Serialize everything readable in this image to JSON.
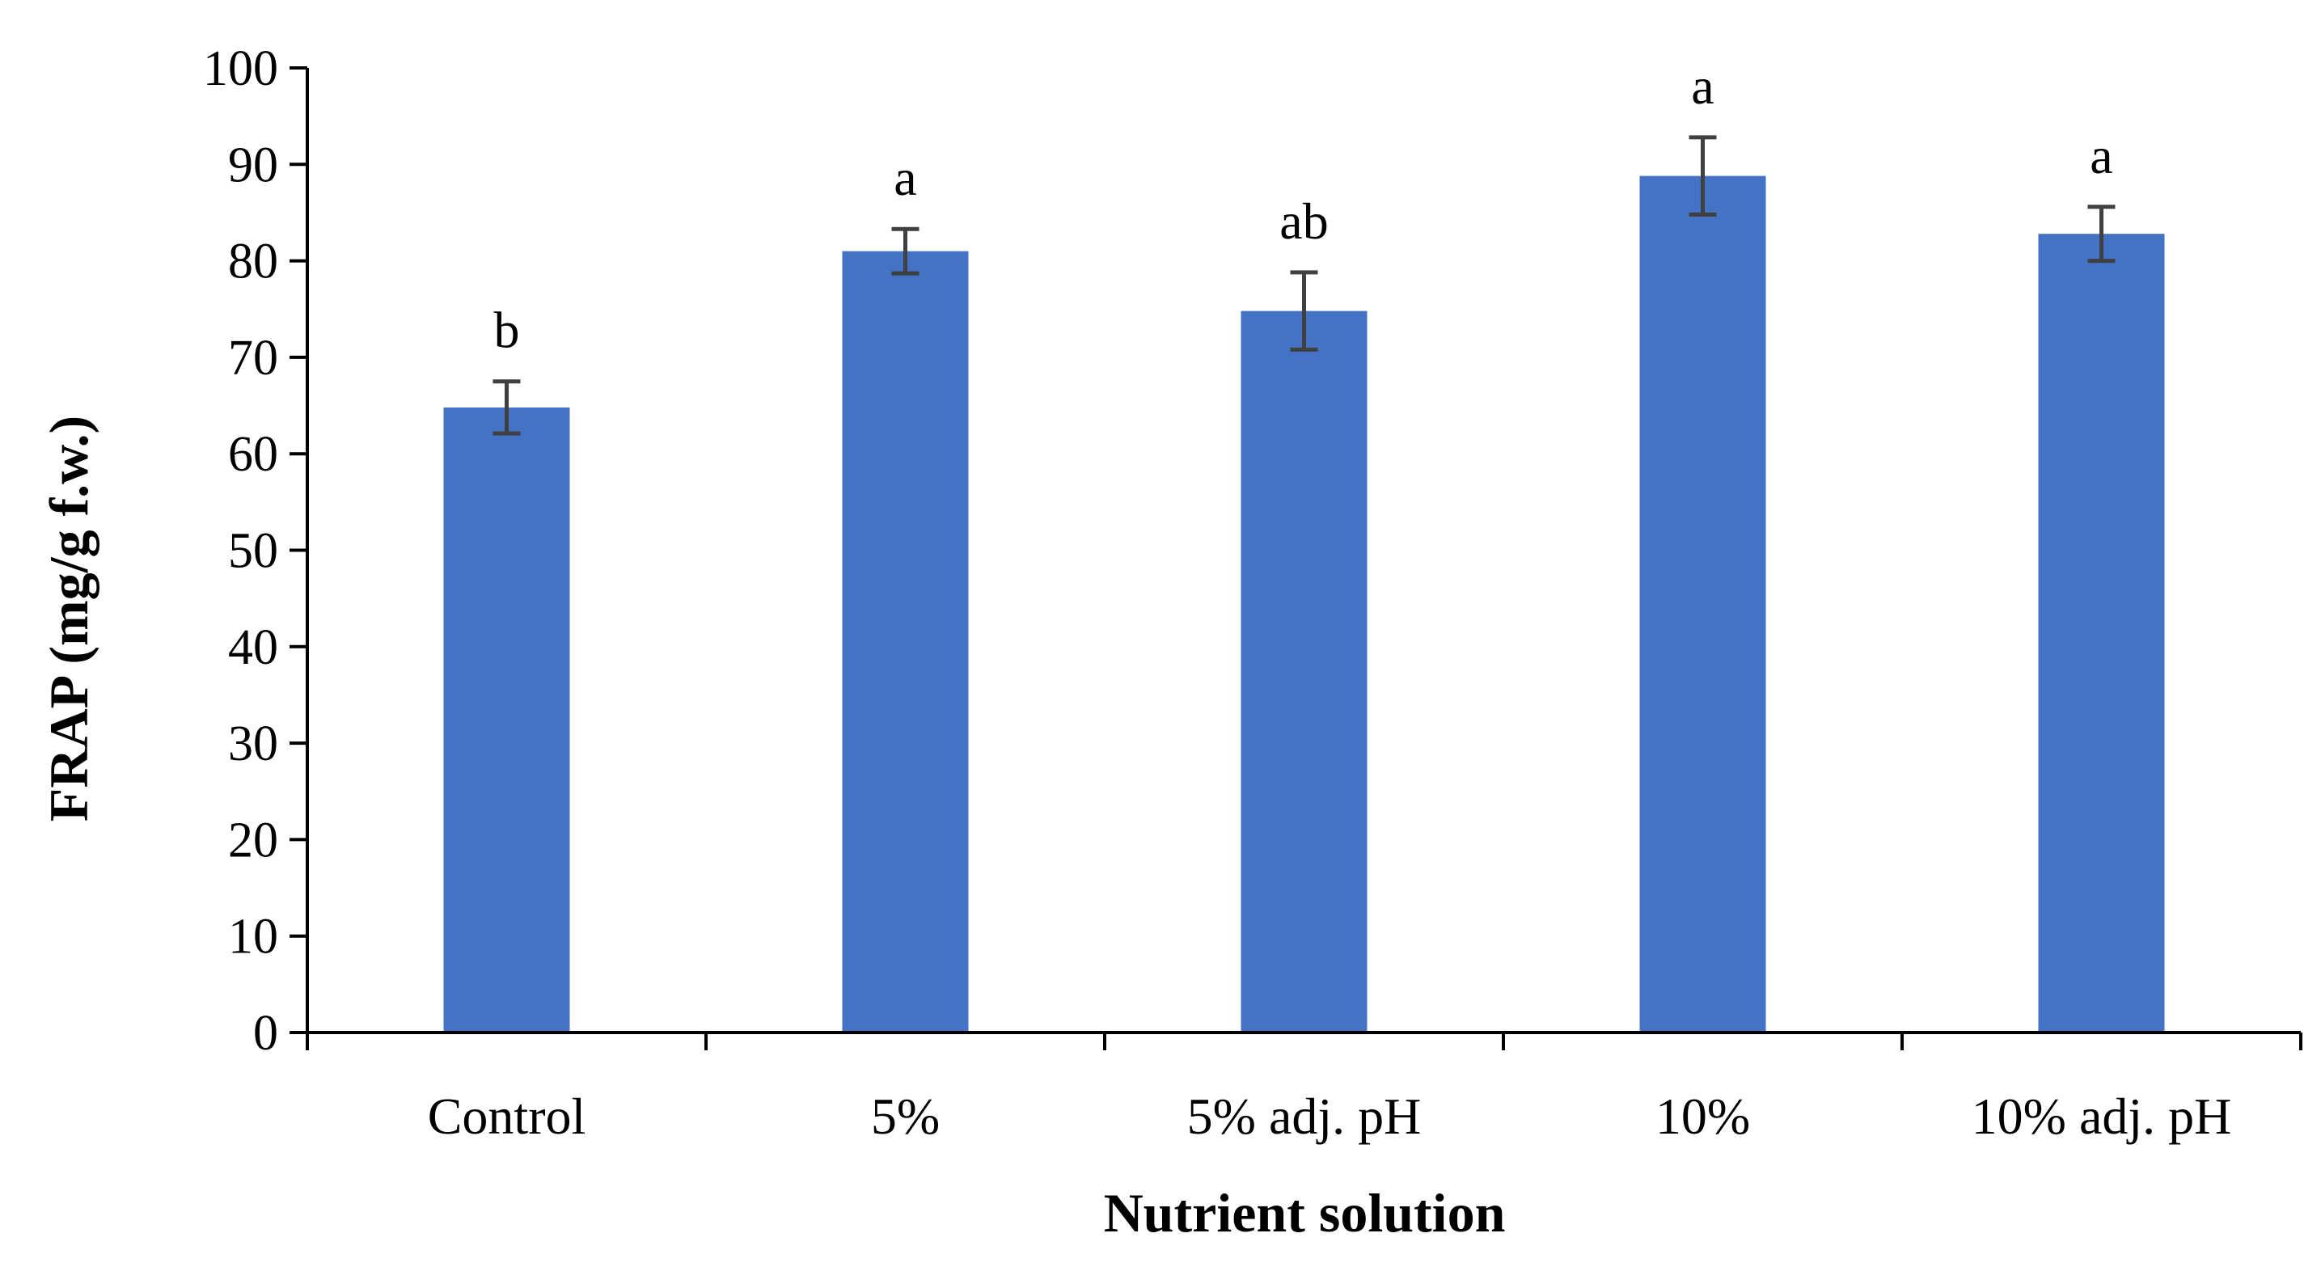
{
  "chart_data": {
    "type": "bar",
    "title": "",
    "xlabel": "Nutrient solution",
    "ylabel": "FRAP (mg/g f.w.)",
    "categories": [
      "Control",
      "5%",
      "5% adj. pH",
      "10%",
      "10% adj. pH"
    ],
    "values": [
      64.8,
      81.0,
      74.8,
      88.8,
      82.8
    ],
    "errors": [
      2.7,
      2.3,
      4.0,
      4.0,
      2.8
    ],
    "significance": [
      "b",
      "a",
      "ab",
      "a",
      "a"
    ],
    "ylim": [
      0,
      100
    ],
    "yticks": [
      0,
      10,
      20,
      30,
      40,
      50,
      60,
      70,
      80,
      90,
      100
    ],
    "ytick_labels": [
      "0",
      "10",
      "20",
      "30",
      "40",
      "50",
      "60",
      "70",
      "80",
      "90",
      "100"
    ],
    "grid": false,
    "bar_color": "#4472C4",
    "error_bar_color": "#404040",
    "axis_color": "#000000"
  }
}
